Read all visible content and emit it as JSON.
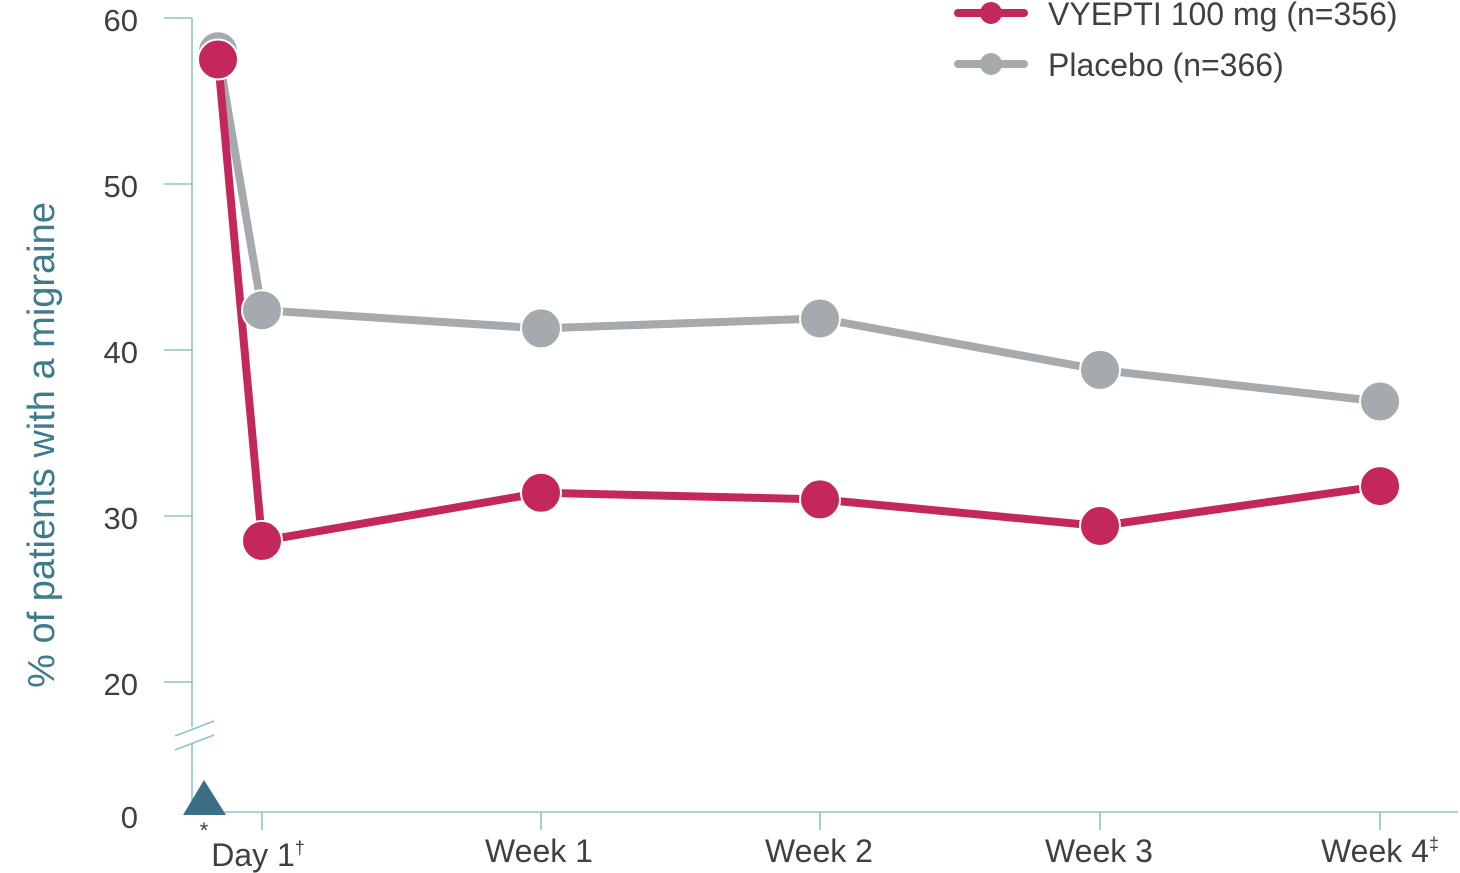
{
  "chart_data": {
    "type": "line",
    "ylabel": "% of patients with a migraine",
    "categories": [
      "",
      "Day 1",
      "Week 1",
      "Week 2",
      "Week 3",
      "Week 4"
    ],
    "category_superscripts": [
      "",
      "†",
      "",
      "",
      "",
      "‡"
    ],
    "y_ticks": [
      "60",
      "50",
      "40",
      "30",
      "20",
      "0"
    ],
    "ylim": [
      0,
      60
    ],
    "axis_break": "between 0 and 20",
    "baseline_marker": "*",
    "baseline_marker_color": "#3a6f85",
    "legend_position": "top-right",
    "series": [
      {
        "name": "VYEPTI 100 mg (n=356)",
        "color": "#c4285a",
        "x": [
          0,
          1,
          2,
          3,
          4,
          5
        ],
        "values": [
          57.5,
          28.5,
          31.4,
          31.0,
          29.4,
          31.8
        ]
      },
      {
        "name": "Placebo (n=366)",
        "color": "#a4aaae",
        "x": [
          0,
          1,
          2,
          3,
          4,
          5
        ],
        "values": [
          58.0,
          42.4,
          41.3,
          41.9,
          38.8,
          36.9
        ]
      }
    ],
    "axis_color": "#8fc1c8",
    "ylabel_color": "#3e7b8c"
  }
}
